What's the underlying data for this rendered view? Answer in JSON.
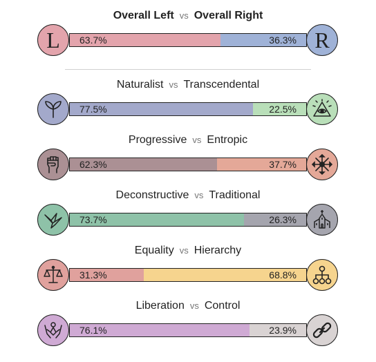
{
  "vs_label": "vs",
  "overall": {
    "left_title": "Overall Left",
    "right_title": "Overall Right",
    "left_pct_text": "63.7%",
    "right_pct_text": "36.3%",
    "left_value": 63.7,
    "right_value": 36.3,
    "left_color": "#e3a4ac",
    "right_color": "#9fb2d7",
    "left_icon_color": "#e3a4ac",
    "right_icon_color": "#9fb2d7",
    "left_letter": "L",
    "right_letter": "R"
  },
  "axes": [
    {
      "left": "Naturalist",
      "right": "Transcendental",
      "left_pct_text": "77.5%",
      "right_pct_text": "22.5%",
      "left_value": 77.5,
      "right_value": 22.5,
      "left_color": "#a3a9cb",
      "right_color": "#b9dfb9",
      "left_icon": "plant-sprout-icon",
      "right_icon": "eye-pyramid-icon"
    },
    {
      "left": "Progressive",
      "right": "Entropic",
      "left_pct_text": "62.3%",
      "right_pct_text": "37.7%",
      "left_value": 62.3,
      "right_value": 37.7,
      "left_color": "#ab9094",
      "right_color": "#e4a898",
      "left_icon": "raised-fist-icon",
      "right_icon": "scatter-arrows-icon"
    },
    {
      "left": "Deconstructive",
      "right": "Traditional",
      "left_pct_text": "73.7%",
      "right_pct_text": "26.3%",
      "left_value": 73.7,
      "right_value": 26.3,
      "left_color": "#8ec2a8",
      "right_color": "#a5a5ae",
      "left_icon": "origami-bird-icon",
      "right_icon": "church-icon"
    },
    {
      "left": "Equality",
      "right": "Hierarchy",
      "left_pct_text": "31.3%",
      "right_pct_text": "68.8%",
      "left_value": 31.3,
      "right_value": 68.8,
      "left_color": "#e0a19d",
      "right_color": "#f6d48e",
      "left_icon": "scales-icon",
      "right_icon": "hierarchy-tree-icon"
    },
    {
      "left": "Liberation",
      "right": "Control",
      "left_pct_text": "76.1%",
      "right_pct_text": "23.9%",
      "left_value": 76.1,
      "right_value": 23.9,
      "left_color": "#cfaad4",
      "right_color": "#d9d3d3",
      "left_icon": "freed-hands-icon",
      "right_icon": "chain-link-icon"
    }
  ]
}
